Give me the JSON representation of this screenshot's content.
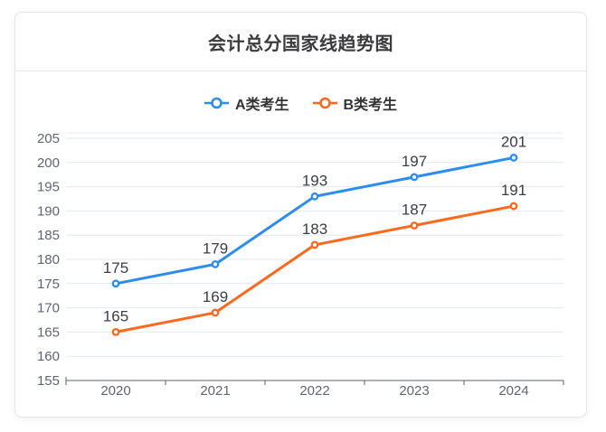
{
  "header": {
    "note": "title shown in card header equals chart title"
  },
  "chart_data": {
    "type": "line",
    "title": "会计总分国家线趋势图",
    "categories": [
      "2020",
      "2021",
      "2022",
      "2023",
      "2024"
    ],
    "series": [
      {
        "name": "A类考生",
        "color": "#2d8cf0",
        "values": [
          175,
          179,
          193,
          197,
          201
        ]
      },
      {
        "name": "B类考生",
        "color": "#fd6a1e",
        "values": [
          165,
          169,
          183,
          187,
          191
        ]
      }
    ],
    "xlabel": "",
    "ylabel": "",
    "ylim": [
      155,
      205
    ],
    "y_tick_step": 5,
    "y_tick_labels": [
      "155",
      "160",
      "165",
      "170",
      "175",
      "180",
      "185",
      "190",
      "195",
      "200",
      "205"
    ],
    "grid": true,
    "legend_position": "top-center",
    "data_labels": true,
    "marker_style": "hollow-circle"
  },
  "colors": {
    "grid_line": "#e3e9f4",
    "axis_line": "#5d616c",
    "axis_text": "#5f6571",
    "data_label_text": "#3b3e45"
  }
}
